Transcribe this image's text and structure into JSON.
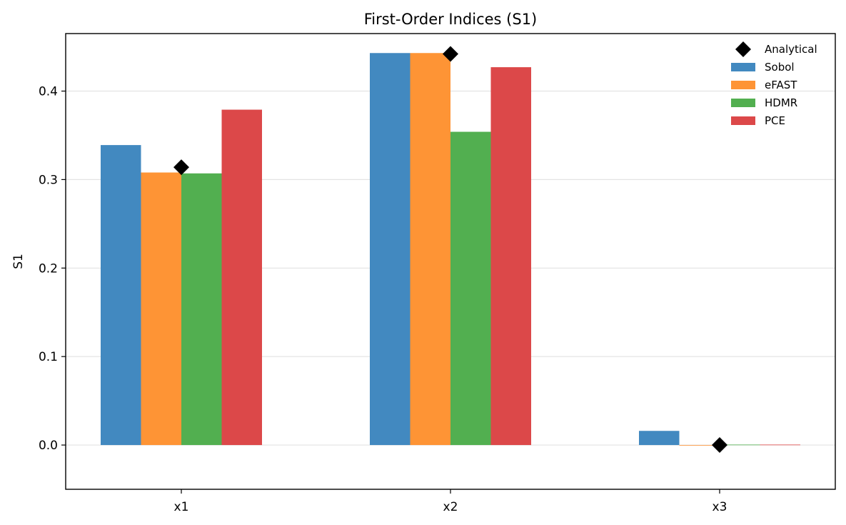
{
  "chart_data": {
    "type": "bar",
    "title": "First-Order Indices (S1)",
    "xlabel": "",
    "ylabel": "S1",
    "categories": [
      "x1",
      "x2",
      "x3"
    ],
    "ylim": [
      -0.05,
      0.465
    ],
    "yticks": [
      0.0,
      0.1,
      0.2,
      0.3,
      0.4
    ],
    "ytick_labels": [
      "0.0",
      "0.1",
      "0.2",
      "0.3",
      "0.4"
    ],
    "grid": "horizontal",
    "legend_placement": "top-right",
    "series": [
      {
        "name": "Sobol",
        "color": "#4289c0",
        "values": [
          0.339,
          0.443,
          0.016
        ]
      },
      {
        "name": "eFAST",
        "color": "#fe9435",
        "values": [
          0.308,
          0.443,
          0.0
        ]
      },
      {
        "name": "HDMR",
        "color": "#52af50",
        "values": [
          0.307,
          0.354,
          0.0005
        ]
      },
      {
        "name": "PCE",
        "color": "#dc4849",
        "values": [
          0.379,
          0.427,
          0.0005
        ]
      }
    ],
    "markers": {
      "name": "Analytical",
      "color": "#000000",
      "shape": "diamond",
      "values": [
        0.314,
        0.442,
        0.0
      ]
    }
  }
}
